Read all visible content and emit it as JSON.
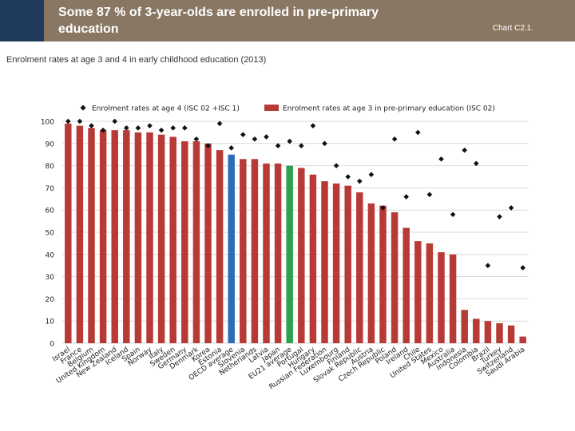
{
  "header": {
    "title": "Some 87 % of 3-year-olds are enrolled in pre-primary education",
    "chart_ref": "Chart C2.1.",
    "subtitle": "Enrolment rates at age 3 and 4 in early childhood education (2013)"
  },
  "colors": {
    "header_bg": "#8a7763",
    "corner": "#1f3a5c",
    "bar": "#b73a36",
    "bar_oecd": "#2d6db5",
    "bar_eu": "#2e9e4f",
    "marker": "#111111",
    "grid": "#d9d9d9"
  },
  "chart_data": {
    "type": "bar",
    "title": "Enrolment rates at age 3 and 4 in early childhood education (2013)",
    "xlabel": "",
    "ylabel": "",
    "ylim": [
      0,
      100
    ],
    "yticks": [
      0,
      10,
      20,
      30,
      40,
      50,
      60,
      70,
      80,
      90,
      100
    ],
    "grid": true,
    "legend_position": "top",
    "categories": [
      "Israel",
      "France",
      "Belgium",
      "United Kingdom",
      "New Zealand",
      "Iceland",
      "Spain",
      "Norway",
      "Italy",
      "Sweden",
      "Germany",
      "Denmark",
      "Korea",
      "Estonia",
      "OECD average",
      "Slovenia",
      "Netherlands",
      "Latvia",
      "Japan",
      "EU21 average",
      "Portugal",
      "Hungary",
      "Russian Federation",
      "Luxembourg",
      "Finland",
      "Slovak Republic",
      "Austria",
      "Czech Republic",
      "Poland",
      "Ireland",
      "Chile",
      "United States",
      "Mexico",
      "Australia",
      "Indonesia",
      "Colombia",
      "Brazil",
      "Turkey",
      "Switzerland",
      "Saudi Arabia"
    ],
    "highlight": {
      "OECD average": "oecd",
      "EU21 average": "eu"
    },
    "series": [
      {
        "name": "Enrolment rates at age 3 in pre-primary education (ISC 02)",
        "kind": "bar",
        "values": [
          99,
          98,
          97,
          96,
          96,
          96,
          95,
          95,
          94,
          93,
          91,
          91,
          90,
          87,
          85,
          83,
          83,
          81,
          81,
          80,
          79,
          76,
          73,
          72,
          71,
          68,
          63,
          62,
          59,
          52,
          46,
          45,
          41,
          40,
          15,
          11,
          10,
          9,
          8,
          3
        ]
      },
      {
        "name": "Enrolment rates at age 4 (ISC 02 +ISC 1)",
        "kind": "marker",
        "values": [
          100,
          100,
          98,
          96,
          100,
          97,
          97,
          98,
          96,
          97,
          97,
          92,
          89,
          99,
          88,
          94,
          92,
          93,
          89,
          91,
          89,
          98,
          90,
          80,
          75,
          73,
          76,
          61,
          92,
          66,
          95,
          67,
          83,
          58,
          87,
          81,
          35,
          57,
          61,
          34
        ]
      }
    ]
  }
}
